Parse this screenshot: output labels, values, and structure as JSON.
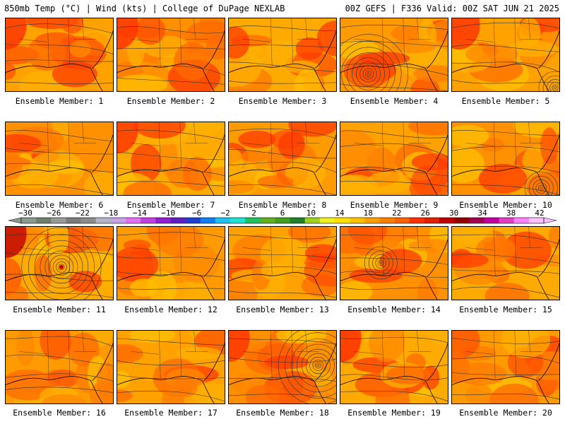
{
  "header": {
    "left": "850mb Temp (°C) | Wind (kts) | College of DuPage NEXLAB",
    "right": "00Z GEFS | F336 Valid: 00Z SAT JUN 21 2025"
  },
  "colorbar": {
    "labels": [
      "−30",
      "−26",
      "−22",
      "−18",
      "−14",
      "−10",
      "−6",
      "−2",
      "2",
      "6",
      "10",
      "14",
      "18",
      "22",
      "26",
      "30",
      "34",
      "38",
      "42"
    ],
    "colors": [
      "#8a9a8f",
      "#6f806f",
      "#9a9a9a",
      "#7c7c7c",
      "#8c8c8c",
      "#b5b5c8",
      "#c8a0e6",
      "#e070f0",
      "#c040e0",
      "#9020d0",
      "#6020c0",
      "#2040d0",
      "#1080f0",
      "#20c0f0",
      "#20e0d0",
      "#20c060",
      "#60b020",
      "#40a020",
      "#20802a",
      "#a0d020",
      "#f0f020",
      "#ffe000",
      "#ffc000",
      "#ffa000",
      "#ff8000",
      "#ff6000",
      "#ff3000",
      "#e02000",
      "#c00000",
      "#900000",
      "#a00050",
      "#c000a0",
      "#e040c0",
      "#ff80ff",
      "#ffc0ff"
    ]
  },
  "members": [
    {
      "label": "Ensemble Member: 1",
      "storm": false
    },
    {
      "label": "Ensemble Member: 2",
      "storm": false
    },
    {
      "label": "Ensemble Member: 3",
      "storm": false
    },
    {
      "label": "Ensemble Member: 4",
      "storm": true
    },
    {
      "label": "Ensemble Member: 5",
      "storm": true
    },
    {
      "label": "Ensemble Member: 6",
      "storm": false
    },
    {
      "label": "Ensemble Member: 7",
      "storm": false
    },
    {
      "label": "Ensemble Member: 8",
      "storm": false
    },
    {
      "label": "Ensemble Member: 9",
      "storm": false
    },
    {
      "label": "Ensemble Member: 10",
      "storm": true
    },
    {
      "label": "Ensemble Member: 11",
      "storm": true
    },
    {
      "label": "Ensemble Member: 12",
      "storm": false
    },
    {
      "label": "Ensemble Member: 13",
      "storm": false
    },
    {
      "label": "Ensemble Member: 14",
      "storm": true
    },
    {
      "label": "Ensemble Member: 15",
      "storm": false
    },
    {
      "label": "Ensemble Member: 16",
      "storm": false
    },
    {
      "label": "Ensemble Member: 17",
      "storm": false
    },
    {
      "label": "Ensemble Member: 18",
      "storm": true
    },
    {
      "label": "Ensemble Member: 19",
      "storm": false
    },
    {
      "label": "Ensemble Member: 20",
      "storm": false
    }
  ]
}
